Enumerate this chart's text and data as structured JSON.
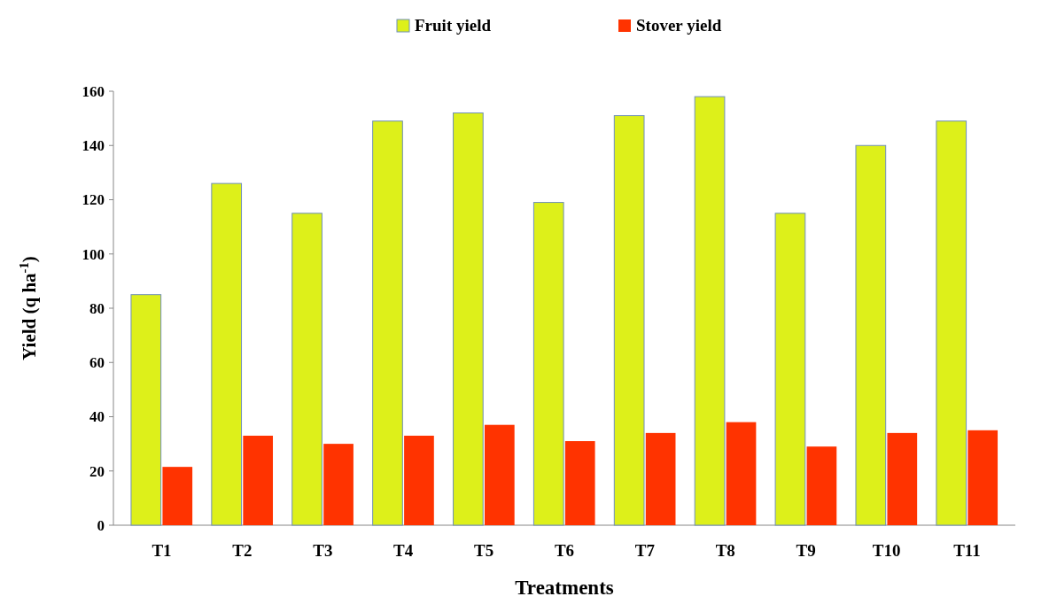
{
  "chart_data": {
    "type": "bar",
    "xlabel": "Treatments",
    "ylabel": "Yield (q ha$^{-1}$)",
    "categories": [
      "T1",
      "T2",
      "T3",
      "T4",
      "T5",
      "T6",
      "T7",
      "T8",
      "T9",
      "T10",
      "T11"
    ],
    "series": [
      {
        "name": "Fruit yield",
        "color": "#ddf01a",
        "values": [
          85,
          126,
          115,
          149,
          152,
          119,
          151,
          158,
          115,
          140,
          149
        ]
      },
      {
        "name": "Stover yield",
        "color": "#ff3300",
        "values": [
          21.5,
          33,
          30,
          33,
          37,
          31,
          34,
          38,
          29,
          34,
          35
        ]
      }
    ],
    "ylim": [
      0,
      160
    ],
    "yticks": [
      0,
      20,
      40,
      60,
      80,
      100,
      120,
      140,
      160
    ],
    "grid": false,
    "legend": "top"
  }
}
